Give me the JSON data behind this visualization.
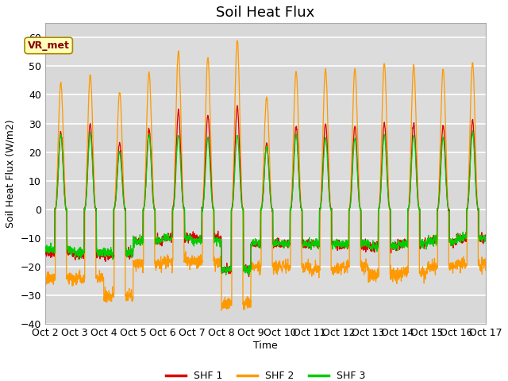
{
  "title": "Soil Heat Flux",
  "ylabel": "Soil Heat Flux (W/m2)",
  "xlabel": "Time",
  "xlim": [
    0,
    15
  ],
  "ylim": [
    -40,
    65
  ],
  "yticks": [
    -40,
    -30,
    -20,
    -10,
    0,
    10,
    20,
    30,
    40,
    50,
    60
  ],
  "xtick_labels": [
    "Oct 2",
    "Oct 3",
    "Oct 4",
    "Oct 5",
    "Oct 6",
    "Oct 7",
    "Oct 8",
    "Oct 9",
    "Oct 10",
    "Oct 11",
    "Oct 12",
    "Oct 13",
    "Oct 14",
    "Oct 15",
    "Oct 16",
    "Oct 17"
  ],
  "bg_color": "#dcdcdc",
  "line_colors": [
    "#dd0000",
    "#ff9900",
    "#00cc00"
  ],
  "legend_labels": [
    "SHF 1",
    "SHF 2",
    "SHF 3"
  ],
  "annotation_text": "VR_met",
  "title_fontsize": 13,
  "label_fontsize": 9,
  "tick_fontsize": 9,
  "day_peaks_shf1": [
    27,
    30,
    23,
    28,
    34,
    33,
    36,
    23,
    29,
    30,
    29,
    30,
    30,
    29,
    31
  ],
  "day_peaks_shf2": [
    44,
    47,
    41,
    48,
    55,
    53,
    59,
    39,
    48,
    49,
    49,
    51,
    50,
    49,
    51
  ],
  "day_peaks_shf3": [
    26,
    27,
    20,
    26,
    26,
    25,
    26,
    22,
    26,
    25,
    25,
    26,
    26,
    25,
    27
  ],
  "day_troughs_shf1": [
    -15,
    -16,
    -16,
    -11,
    -10,
    -10,
    -21,
    -12,
    -12,
    -12,
    -13,
    -13,
    -12,
    -11,
    -10
  ],
  "day_troughs_shf2": [
    -24,
    -24,
    -30,
    -19,
    -18,
    -18,
    -33,
    -20,
    -20,
    -21,
    -20,
    -23,
    -22,
    -20,
    -19
  ],
  "day_troughs_shf3": [
    -14,
    -15,
    -15,
    -11,
    -10,
    -11,
    -21,
    -12,
    -12,
    -12,
    -12,
    -13,
    -12,
    -11,
    -10
  ]
}
